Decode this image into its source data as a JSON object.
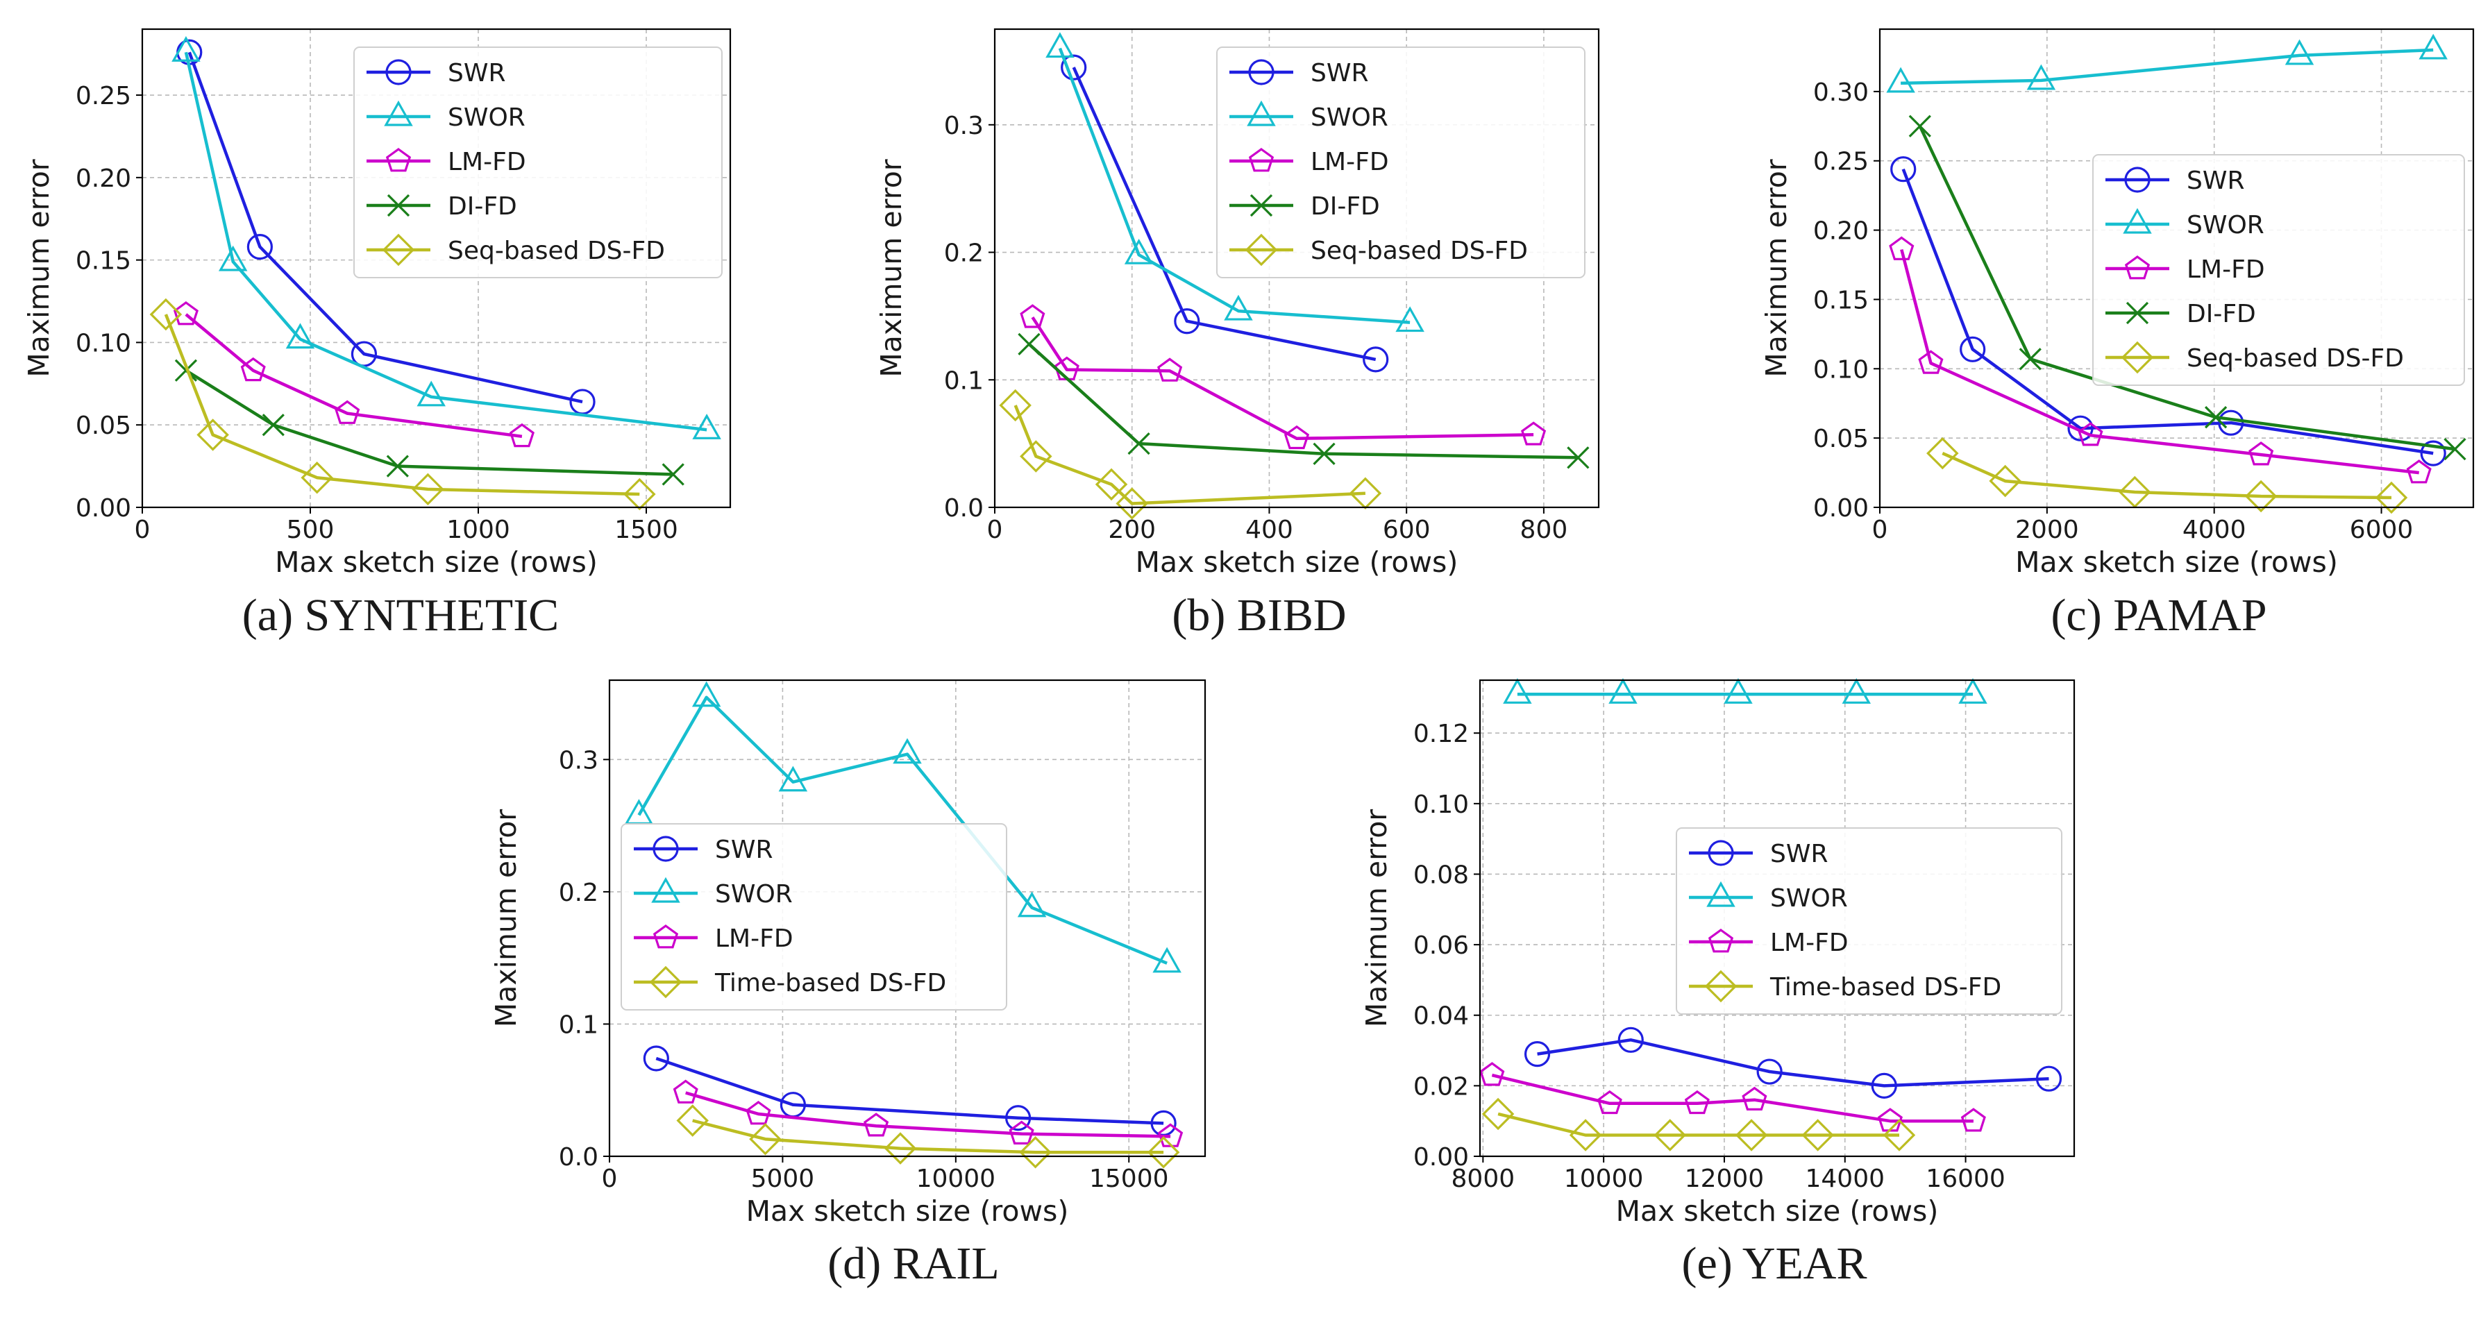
{
  "figure": {
    "panels": [
      {
        "caption": "(a) SYNTHETIC"
      },
      {
        "caption": "(b) BIBD"
      },
      {
        "caption": "(c) PAMAP"
      },
      {
        "caption": "(d) RAIL"
      },
      {
        "caption": "(e) YEAR"
      }
    ]
  },
  "chart_data": [
    {
      "type": "line",
      "title": "",
      "caption": "(a) SYNTHETIC",
      "xlabel": "Max sketch size (rows)",
      "ylabel": "Maximum error",
      "xlim": [
        0,
        1750
      ],
      "ylim": [
        0,
        0.29
      ],
      "xticks": [
        0,
        500,
        1000,
        1500
      ],
      "xtick_labels": [
        "0",
        "500",
        "1000",
        "1500"
      ],
      "yticks": [
        0,
        0.05,
        0.1,
        0.15,
        0.2,
        0.25
      ],
      "ytick_labels": [
        "0.00",
        "0.05",
        "0.10",
        "0.15",
        "0.20",
        "0.25"
      ],
      "grid": true,
      "legend_position": "top-right",
      "series": [
        {
          "name": "SWR",
          "color": "#1f1fe0",
          "marker": "circle",
          "x": [
            140,
            350,
            660,
            1310
          ],
          "y": [
            0.276,
            0.158,
            0.093,
            0.064
          ]
        },
        {
          "name": "SWOR",
          "color": "#17becf",
          "marker": "triangle",
          "x": [
            130,
            270,
            470,
            860,
            1680
          ],
          "y": [
            0.276,
            0.149,
            0.102,
            0.067,
            0.047
          ]
        },
        {
          "name": "LM-FD",
          "color": "#cc00cc",
          "marker": "pentagon",
          "x": [
            130,
            330,
            610,
            1130
          ],
          "y": [
            0.117,
            0.083,
            0.057,
            0.043
          ]
        },
        {
          "name": "DI-FD",
          "color": "#1a7f1a",
          "marker": "x",
          "x": [
            130,
            390,
            760,
            1580
          ],
          "y": [
            0.083,
            0.05,
            0.025,
            0.02
          ]
        },
        {
          "name": "Seq-based DS-FD",
          "color": "#bcbd22",
          "marker": "diamond",
          "x": [
            70,
            210,
            520,
            850,
            1480
          ],
          "y": [
            0.117,
            0.044,
            0.018,
            0.011,
            0.008
          ]
        }
      ]
    },
    {
      "type": "line",
      "title": "",
      "caption": "(b) BIBD",
      "xlabel": "Max sketch size (rows)",
      "ylabel": "Maximum error",
      "xlim": [
        0,
        880
      ],
      "ylim": [
        0,
        0.375
      ],
      "xticks": [
        0,
        200,
        400,
        600,
        800
      ],
      "xtick_labels": [
        "0",
        "200",
        "400",
        "600",
        "800"
      ],
      "yticks": [
        0,
        0.1,
        0.2,
        0.3
      ],
      "ytick_labels": [
        "0.0",
        "0.1",
        "0.2",
        "0.3"
      ],
      "grid": true,
      "legend_position": "top-right",
      "series": [
        {
          "name": "SWR",
          "color": "#1f1fe0",
          "marker": "circle",
          "x": [
            115,
            280,
            555
          ],
          "y": [
            0.345,
            0.146,
            0.116
          ]
        },
        {
          "name": "SWOR",
          "color": "#17becf",
          "marker": "triangle",
          "x": [
            95,
            210,
            355,
            605
          ],
          "y": [
            0.36,
            0.198,
            0.154,
            0.145
          ]
        },
        {
          "name": "LM-FD",
          "color": "#cc00cc",
          "marker": "pentagon",
          "x": [
            55,
            105,
            255,
            440,
            785
          ],
          "y": [
            0.149,
            0.108,
            0.107,
            0.054,
            0.057
          ]
        },
        {
          "name": "DI-FD",
          "color": "#1a7f1a",
          "marker": "x",
          "x": [
            50,
            210,
            480,
            850
          ],
          "y": [
            0.128,
            0.05,
            0.042,
            0.039
          ]
        },
        {
          "name": "Seq-based DS-FD",
          "color": "#bcbd22",
          "marker": "diamond",
          "x": [
            30,
            60,
            170,
            200,
            540
          ],
          "y": [
            0.08,
            0.04,
            0.018,
            0.003,
            0.011
          ]
        }
      ]
    },
    {
      "type": "line",
      "title": "",
      "caption": "(c) PAMAP",
      "xlabel": "Max sketch size (rows)",
      "ylabel": "Maximum error",
      "xlim": [
        0,
        7100
      ],
      "ylim": [
        0,
        0.345
      ],
      "xticks": [
        0,
        2000,
        4000,
        6000
      ],
      "xtick_labels": [
        "0",
        "2000",
        "4000",
        "6000"
      ],
      "yticks": [
        0,
        0.05,
        0.1,
        0.15,
        0.2,
        0.25,
        0.3
      ],
      "ytick_labels": [
        "0.00",
        "0.05",
        "0.10",
        "0.15",
        "0.20",
        "0.25",
        "0.30"
      ],
      "grid": true,
      "legend_position": "center-right",
      "series": [
        {
          "name": "SWR",
          "color": "#1f1fe0",
          "marker": "circle",
          "x": [
            280,
            1110,
            2400,
            4200,
            6620
          ],
          "y": [
            0.244,
            0.114,
            0.057,
            0.061,
            0.039
          ]
        },
        {
          "name": "SWOR",
          "color": "#17becf",
          "marker": "triangle",
          "x": [
            250,
            1930,
            5020,
            6620
          ],
          "y": [
            0.306,
            0.308,
            0.326,
            0.33
          ]
        },
        {
          "name": "LM-FD",
          "color": "#cc00cc",
          "marker": "pentagon",
          "x": [
            260,
            610,
            2520,
            4560,
            6450
          ],
          "y": [
            0.186,
            0.104,
            0.052,
            0.038,
            0.025
          ]
        },
        {
          "name": "DI-FD",
          "color": "#1a7f1a",
          "marker": "x",
          "x": [
            480,
            1800,
            4020,
            6880
          ],
          "y": [
            0.275,
            0.107,
            0.065,
            0.042
          ]
        },
        {
          "name": "Seq-based DS-FD",
          "color": "#bcbd22",
          "marker": "diamond",
          "x": [
            750,
            1500,
            3050,
            4560,
            6120
          ],
          "y": [
            0.039,
            0.019,
            0.011,
            0.008,
            0.007
          ]
        }
      ]
    },
    {
      "type": "line",
      "title": "",
      "caption": "(d) RAIL",
      "xlabel": "Max sketch size (rows)",
      "ylabel": "Maximum error",
      "xlim": [
        0,
        17200
      ],
      "ylim": [
        0,
        0.36
      ],
      "xticks": [
        0,
        5000,
        10000,
        15000
      ],
      "xtick_labels": [
        "0",
        "5000",
        "10000",
        "15000"
      ],
      "yticks": [
        0,
        0.1,
        0.2,
        0.3
      ],
      "ytick_labels": [
        "0.0",
        "0.1",
        "0.2",
        "0.3"
      ],
      "grid": true,
      "legend_position": "center-left",
      "series": [
        {
          "name": "SWR",
          "color": "#1f1fe0",
          "marker": "circle",
          "x": [
            1350,
            5300,
            11800,
            16000
          ],
          "y": [
            0.074,
            0.039,
            0.029,
            0.025
          ]
        },
        {
          "name": "SWOR",
          "color": "#17becf",
          "marker": "triangle",
          "x": [
            850,
            2800,
            5300,
            8600,
            12200,
            16100
          ],
          "y": [
            0.258,
            0.347,
            0.283,
            0.304,
            0.188,
            0.146
          ]
        },
        {
          "name": "LM-FD",
          "color": "#cc00cc",
          "marker": "pentagon",
          "x": [
            2200,
            4300,
            7700,
            11900,
            16200
          ],
          "y": [
            0.048,
            0.032,
            0.023,
            0.017,
            0.015
          ]
        },
        {
          "name": "Time-based DS-FD",
          "color": "#bcbd22",
          "marker": "diamond",
          "x": [
            2400,
            4500,
            8400,
            12300,
            16000
          ],
          "y": [
            0.027,
            0.013,
            0.006,
            0.003,
            0.003
          ]
        }
      ]
    },
    {
      "type": "line",
      "title": "",
      "caption": "(e) YEAR",
      "xlabel": "Max sketch size (rows)",
      "ylabel": "Maximum error",
      "xlim": [
        7950,
        17800
      ],
      "ylim": [
        0,
        0.135
      ],
      "xticks": [
        8000,
        10000,
        12000,
        14000,
        16000
      ],
      "xtick_labels": [
        "8000",
        "10000",
        "12000",
        "14000",
        "16000"
      ],
      "yticks": [
        0,
        0.02,
        0.04,
        0.06,
        0.08,
        0.1,
        0.12
      ],
      "ytick_labels": [
        "0.00",
        "0.02",
        "0.04",
        "0.06",
        "0.08",
        "0.10",
        "0.12"
      ],
      "grid": true,
      "legend_position": "center-right",
      "series": [
        {
          "name": "SWR",
          "color": "#1f1fe0",
          "marker": "circle",
          "x": [
            8900,
            10450,
            12750,
            14650,
            17380
          ],
          "y": [
            0.029,
            0.033,
            0.024,
            0.02,
            0.022
          ]
        },
        {
          "name": "SWOR",
          "color": "#17becf",
          "marker": "triangle",
          "x": [
            8570,
            10320,
            12230,
            14190,
            16120
          ],
          "y": [
            0.131,
            0.131,
            0.131,
            0.131,
            0.131
          ]
        },
        {
          "name": "LM-FD",
          "color": "#cc00cc",
          "marker": "pentagon",
          "x": [
            8150,
            10100,
            11550,
            12500,
            14750,
            16130
          ],
          "y": [
            0.023,
            0.015,
            0.015,
            0.016,
            0.01,
            0.01
          ]
        },
        {
          "name": "Time-based DS-FD",
          "color": "#bcbd22",
          "marker": "diamond",
          "x": [
            8250,
            9700,
            11100,
            12450,
            13550,
            14900
          ],
          "y": [
            0.012,
            0.006,
            0.006,
            0.006,
            0.006,
            0.006
          ]
        }
      ]
    }
  ]
}
